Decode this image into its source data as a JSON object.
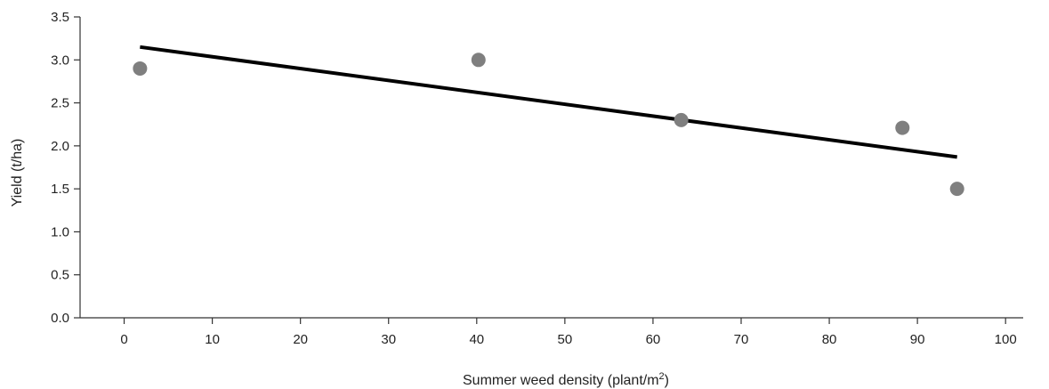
{
  "chart_data": {
    "type": "scatter",
    "title": "",
    "xlabel": "Summer weed density (plant/m",
    "xlabel_superscript": "2",
    "xlabel_suffix": ")",
    "ylabel": "Yield (t/ha)",
    "xlim": [
      -5,
      102
    ],
    "ylim": [
      0,
      3.5
    ],
    "x_ticks": [
      0,
      10,
      20,
      30,
      40,
      50,
      60,
      70,
      80,
      90,
      100
    ],
    "x_tick_labels": [
      "0",
      "10",
      "20",
      "30",
      "40",
      "50",
      "60",
      "70",
      "80",
      "90",
      "100"
    ],
    "y_ticks": [
      0,
      0.5,
      1.0,
      1.5,
      2.0,
      2.5,
      3.0,
      3.5
    ],
    "y_tick_labels": [
      "0.0",
      "0.5",
      "1.0",
      "1.5",
      "2.0",
      "2.5",
      "3.0",
      "3.5"
    ],
    "grid": false,
    "legend": "none",
    "series": [
      {
        "points": [
          {
            "x": 1.8,
            "y": 2.9
          },
          {
            "x": 40.2,
            "y": 3.0
          },
          {
            "x": 63.2,
            "y": 2.3
          },
          {
            "x": 88.3,
            "y": 2.21
          },
          {
            "x": 94.5,
            "y": 1.5
          }
        ],
        "color": "#7f7f7f"
      }
    ],
    "trendline": {
      "type": "linear",
      "x_start": 1.8,
      "y_start": 3.15,
      "x_end": 94.5,
      "y_end": 1.87,
      "color": "#000000"
    }
  }
}
